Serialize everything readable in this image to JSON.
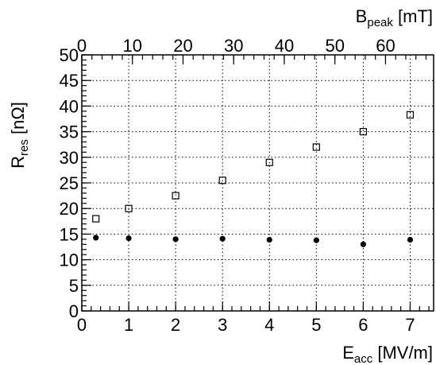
{
  "chart_data": {
    "type": "scatter",
    "title": "",
    "xlabel": {
      "main": "E",
      "sub": "acc",
      "unit": " [MV/m]"
    },
    "ylabel": {
      "main": "R",
      "sub": "res",
      "unit": " [nΩ]"
    },
    "x2label": {
      "main": "B",
      "sub": "peak",
      "unit": " [mT]"
    },
    "xlim": [
      0,
      7.5
    ],
    "ylim": [
      0,
      50
    ],
    "x2lim": [
      0,
      69.5
    ],
    "grid": true,
    "xticks": [
      0,
      1,
      2,
      3,
      4,
      5,
      6,
      7
    ],
    "yticks": [
      0,
      5,
      10,
      15,
      20,
      25,
      30,
      35,
      40,
      45,
      50
    ],
    "x2ticks": [
      0,
      10,
      20,
      30,
      40,
      50,
      60
    ],
    "series": [
      {
        "marker": "open-square",
        "color": "#000000",
        "x": [
          0.3,
          1,
          2,
          3,
          4,
          5,
          6,
          7
        ],
        "y": [
          18.0,
          20.0,
          22.5,
          25.5,
          29.0,
          32.0,
          35.0,
          38.3
        ]
      },
      {
        "marker": "filled-circle",
        "color": "#000000",
        "x": [
          0.3,
          1,
          2,
          3,
          4,
          5,
          6,
          7
        ],
        "y": [
          14.3,
          14.2,
          14.0,
          14.1,
          13.9,
          13.8,
          13.0,
          13.9
        ]
      }
    ]
  }
}
